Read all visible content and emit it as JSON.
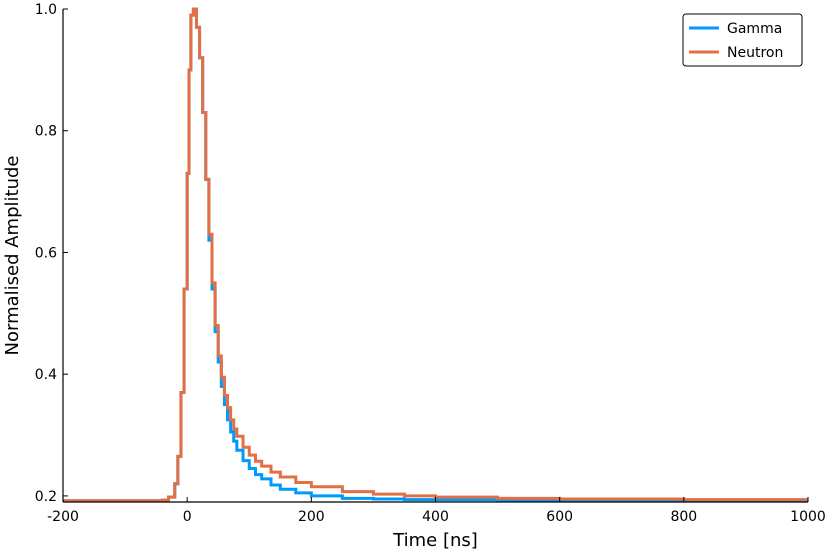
{
  "chart_data": {
    "type": "line",
    "step": true,
    "title": "",
    "xlabel": "Time [ns]",
    "ylabel": "Normalised Amplitude",
    "xlim": [
      -200,
      1000
    ],
    "ylim": [
      0.19,
      1.0
    ],
    "xticks": [
      -200,
      0,
      200,
      400,
      600,
      800,
      1000
    ],
    "xtick_labels": [
      "-200",
      "0",
      "200",
      "400",
      "600",
      "800",
      "1000"
    ],
    "yticks": [
      0.2,
      0.4,
      0.6,
      0.8,
      1.0
    ],
    "ytick_labels": [
      "0.2",
      "0.4",
      "0.6",
      "0.8",
      "1.0"
    ],
    "grid": false,
    "legend_position": "top-right",
    "series": [
      {
        "name": "Gamma",
        "color": "#009AFA",
        "x": [
          -200,
          -120,
          -40,
          -30,
          -20,
          -15,
          -10,
          -5,
          0,
          3,
          6,
          10,
          15,
          20,
          25,
          30,
          35,
          40,
          45,
          50,
          55,
          60,
          65,
          70,
          75,
          80,
          90,
          100,
          110,
          120,
          135,
          150,
          175,
          200,
          250,
          300,
          350,
          400,
          500,
          600,
          700,
          800,
          900,
          1000
        ],
        "y": [
          0.192,
          0.192,
          0.193,
          0.198,
          0.22,
          0.265,
          0.37,
          0.54,
          0.73,
          0.9,
          0.99,
          1.0,
          0.97,
          0.92,
          0.83,
          0.72,
          0.62,
          0.54,
          0.47,
          0.42,
          0.38,
          0.35,
          0.325,
          0.305,
          0.29,
          0.275,
          0.258,
          0.245,
          0.235,
          0.228,
          0.218,
          0.211,
          0.205,
          0.2,
          0.196,
          0.195,
          0.194,
          0.194,
          0.193,
          0.193,
          0.193,
          0.193,
          0.193,
          0.193
        ]
      },
      {
        "name": "Neutron",
        "color": "#E26F46",
        "x": [
          -200,
          -120,
          -40,
          -30,
          -20,
          -15,
          -10,
          -5,
          0,
          3,
          6,
          10,
          15,
          20,
          25,
          30,
          35,
          40,
          45,
          50,
          55,
          60,
          65,
          70,
          75,
          80,
          90,
          100,
          110,
          120,
          135,
          150,
          175,
          200,
          250,
          300,
          350,
          400,
          500,
          600,
          700,
          800,
          900,
          1000
        ],
        "y": [
          0.192,
          0.192,
          0.193,
          0.198,
          0.22,
          0.265,
          0.37,
          0.54,
          0.73,
          0.9,
          0.99,
          1.0,
          0.97,
          0.92,
          0.83,
          0.72,
          0.63,
          0.55,
          0.48,
          0.43,
          0.395,
          0.365,
          0.345,
          0.325,
          0.31,
          0.298,
          0.28,
          0.267,
          0.257,
          0.249,
          0.239,
          0.231,
          0.222,
          0.215,
          0.207,
          0.203,
          0.2,
          0.198,
          0.196,
          0.195,
          0.195,
          0.194,
          0.194,
          0.194
        ]
      }
    ]
  }
}
